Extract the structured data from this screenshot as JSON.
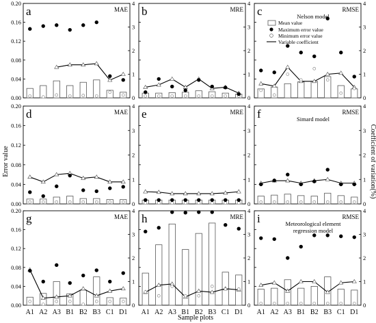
{
  "figure": {
    "y_axis_title": "Error value",
    "y2_axis_title": "Coefficient of variation(%)",
    "x_axis_title": "Sample plots",
    "legend": {
      "mean": "Mean value",
      "max": "Maximum error value",
      "min": "Minimum error value",
      "cv": "Variable coefficient"
    }
  },
  "chart_data": [
    {
      "id": "a",
      "type": "bar",
      "label": "a",
      "metric": "MAE",
      "model": "",
      "categories": [
        "A1",
        "A2",
        "A3",
        "B1",
        "B2",
        "B3",
        "C1",
        "D1"
      ],
      "ylim": [
        0,
        0.2
      ],
      "yticks": [
        "0.00",
        "0.04",
        "0.08",
        "0.12",
        "0.16",
        "0.20"
      ],
      "y2lim": [
        0,
        4
      ],
      "y2ticks": [
        "0",
        "1",
        "2",
        "3",
        "4"
      ],
      "mean": [
        0.02,
        0.026,
        0.036,
        0.026,
        0.033,
        0.038,
        0.016,
        0.012
      ],
      "max": [
        0.146,
        0.152,
        0.154,
        0.144,
        0.154,
        0.16,
        0.046,
        0.038
      ],
      "min": [
        0.004,
        0.002,
        0.006,
        0.004,
        0.005,
        0.004,
        0.012,
        0.006
      ],
      "cv": [
        null,
        null,
        1.3,
        1.4,
        1.4,
        1.45,
        0.75,
        1.0
      ]
    },
    {
      "id": "b",
      "type": "bar",
      "label": "b",
      "metric": "MRE",
      "model": "",
      "categories": [
        "A1",
        "A2",
        "A3",
        "B1",
        "B2",
        "B3",
        "C1",
        "D1"
      ],
      "ylim": [
        0,
        1.0
      ],
      "yticks": [
        "0.0",
        "0.2",
        "0.4",
        "0.6",
        "0.8",
        "1.0"
      ],
      "y2lim": [
        0,
        4
      ],
      "y2ticks": [
        "0",
        "1",
        "2",
        "3",
        "4"
      ],
      "mean": [
        0.05,
        0.05,
        0.055,
        0.06,
        0.075,
        0.065,
        0.05,
        0.04
      ],
      "max": [
        0.06,
        0.2,
        0.12,
        0.08,
        0.19,
        0.12,
        0.11,
        0.04
      ],
      "min": [
        0.02,
        0.02,
        0.02,
        0.02,
        0.02,
        0.02,
        0.02,
        0.02
      ],
      "cv": [
        0.45,
        0.55,
        0.8,
        0.45,
        0.8,
        0.4,
        0.45,
        0.2
      ]
    },
    {
      "id": "c",
      "type": "bar",
      "label": "c",
      "metric": "RMSE",
      "model": "Nelson model",
      "categories": [
        "A1",
        "A2",
        "A3",
        "B1",
        "B2",
        "B3",
        "C1",
        "D1"
      ],
      "ylim": [
        0,
        0.2
      ],
      "yticks": [
        "0.00",
        "0.04",
        "0.08",
        "0.12",
        "0.16",
        "0.20"
      ],
      "y2lim": [
        0,
        4
      ],
      "y2ticks": [
        "0",
        "1",
        "2",
        "3",
        "4"
      ],
      "mean": [
        0.019,
        0.023,
        0.03,
        0.034,
        0.035,
        0.045,
        0.026,
        0.019
      ],
      "max": [
        0.058,
        0.054,
        0.11,
        0.096,
        0.088,
        0.168,
        0.096,
        0.045
      ],
      "min": [
        0.016,
        0.006,
        0.05,
        0.038,
        0.062,
        0.038,
        0.01,
        0.02
      ],
      "cv": [
        0.6,
        0.5,
        1.3,
        0.7,
        0.7,
        1.0,
        1.05,
        0.45
      ]
    },
    {
      "id": "d",
      "type": "bar",
      "label": "d",
      "metric": "MAE",
      "model": "",
      "categories": [
        "A1",
        "A2",
        "A3",
        "B1",
        "B2",
        "B3",
        "C1",
        "D1"
      ],
      "ylim": [
        0,
        0.2
      ],
      "yticks": [
        "0.00",
        "0.04",
        "0.08",
        "0.12",
        "0.16",
        "0.20"
      ],
      "y2lim": [
        0,
        4
      ],
      "y2ticks": [
        "0",
        "1",
        "2",
        "3",
        "4"
      ],
      "mean": [
        0.01,
        0.01,
        0.014,
        0.016,
        0.011,
        0.011,
        0.009,
        0.009
      ],
      "max": [
        0.024,
        0.016,
        0.036,
        0.058,
        0.028,
        0.026,
        0.032,
        0.035
      ],
      "min": [
        0.004,
        0.004,
        0.004,
        0.004,
        0.004,
        0.004,
        0.004,
        0.004
      ],
      "cv": [
        1.1,
        0.9,
        1.2,
        1.25,
        1.05,
        1.1,
        0.9,
        0.9
      ]
    },
    {
      "id": "e",
      "type": "bar",
      "label": "e",
      "metric": "MRE",
      "model": "",
      "categories": [
        "A1",
        "A2",
        "A3",
        "B1",
        "B2",
        "B3",
        "C1",
        "D1"
      ],
      "ylim": [
        0,
        1.0
      ],
      "yticks": [
        "0.0",
        "0.2",
        "0.4",
        "0.6",
        "0.8",
        "1.0"
      ],
      "y2lim": [
        0,
        4
      ],
      "y2ticks": [
        "0",
        "1",
        "2",
        "3",
        "4"
      ],
      "mean": [
        0.04,
        0.04,
        0.04,
        0.04,
        0.04,
        0.04,
        0.04,
        0.04
      ],
      "max": [
        0.04,
        0.04,
        0.04,
        0.04,
        0.04,
        0.04,
        0.04,
        0.04
      ],
      "min": [
        0.01,
        0.01,
        0.01,
        0.01,
        0.01,
        0.01,
        0.01,
        0.01
      ],
      "cv": [
        0.5,
        0.48,
        0.42,
        0.42,
        0.42,
        0.42,
        0.45,
        0.5
      ]
    },
    {
      "id": "f",
      "type": "bar",
      "label": "f",
      "metric": "RMSE",
      "model": "Simard model",
      "categories": [
        "A1",
        "A2",
        "A3",
        "B1",
        "B2",
        "B3",
        "C1",
        "D1"
      ],
      "ylim": [
        0,
        0.2
      ],
      "yticks": [
        "0.00",
        "0.04",
        "0.08",
        "0.12",
        "0.16",
        "0.20"
      ],
      "y2lim": [
        0,
        4
      ],
      "y2ticks": [
        "0",
        "1",
        "2",
        "3",
        "4"
      ],
      "mean": [
        0.016,
        0.018,
        0.02,
        0.017,
        0.016,
        0.022,
        0.017,
        0.014
      ],
      "max": [
        0.04,
        0.048,
        0.06,
        0.04,
        0.046,
        0.07,
        0.04,
        0.04
      ],
      "min": [
        0.004,
        0.004,
        0.004,
        0.004,
        0.004,
        0.004,
        0.004,
        0.004
      ],
      "cv": [
        0.85,
        0.95,
        0.95,
        0.85,
        0.95,
        1.0,
        0.85,
        0.85
      ]
    },
    {
      "id": "g",
      "type": "bar",
      "label": "g",
      "metric": "MAE",
      "model": "",
      "categories": [
        "A1",
        "A2",
        "A3",
        "B1",
        "B2",
        "B3",
        "C1",
        "D1"
      ],
      "ylim": [
        0,
        0.2
      ],
      "yticks": [
        "0.00",
        "0.04",
        "0.08",
        "0.12",
        "0.16",
        "0.20"
      ],
      "y2lim": [
        0,
        4
      ],
      "y2ticks": [
        "0",
        "1",
        "2",
        "3",
        "4"
      ],
      "mean": [
        0.017,
        0.025,
        0.05,
        0.024,
        0.032,
        0.06,
        0.016,
        0.015
      ],
      "max": [
        0.073,
        0.05,
        0.085,
        0.047,
        0.063,
        0.074,
        0.05,
        0.068
      ],
      "min": [
        0.008,
        0.002,
        0.008,
        0.008,
        0.002,
        0.008,
        0.008,
        0.008
      ],
      "cv": [
        1.5,
        0.3,
        0.35,
        0.4,
        0.7,
        0.4,
        0.6,
        0.7
      ]
    },
    {
      "id": "h",
      "type": "bar",
      "label": "h",
      "metric": "MRE",
      "model": "",
      "categories": [
        "A1",
        "A2",
        "A3",
        "B1",
        "B2",
        "B3",
        "C1",
        "D1"
      ],
      "ylim": [
        0,
        1.0
      ],
      "yticks": [
        "0.0",
        "0.2",
        "0.4",
        "0.6",
        "0.8",
        "1.0"
      ],
      "y2lim": [
        0,
        4
      ],
      "y2ticks": [
        "0",
        "1",
        "2",
        "3",
        "4"
      ],
      "mean": [
        0.34,
        0.64,
        0.86,
        0.59,
        0.76,
        0.87,
        0.35,
        0.32
      ],
      "max": [
        0.78,
        0.82,
        1.0,
        0.98,
        0.99,
        0.99,
        0.85,
        0.81
      ],
      "min": [
        0.14,
        0.1,
        0.2,
        0.1,
        0.1,
        0.2,
        0.17,
        0.17
      ],
      "cv": [
        0.55,
        0.85,
        0.9,
        0.35,
        0.6,
        0.55,
        0.7,
        0.65
      ]
    },
    {
      "id": "i",
      "type": "bar",
      "label": "i",
      "metric": "RMSE",
      "model": "Meteorological element regression model",
      "categories": [
        "A1",
        "A2",
        "A3",
        "B1",
        "B2",
        "B3",
        "C1",
        "D1"
      ],
      "ylim": [
        0,
        1.0
      ],
      "yticks": [
        "0.0",
        "0.2",
        "0.4",
        "0.6",
        "0.8",
        "1.0"
      ],
      "y2lim": [
        0,
        4
      ],
      "y2ticks": [
        "0",
        "1",
        "2",
        "3",
        "4"
      ],
      "mean": [
        0.17,
        0.18,
        0.27,
        0.18,
        0.2,
        0.3,
        0.17,
        0.16
      ],
      "max": [
        0.71,
        0.7,
        0.5,
        0.62,
        0.74,
        0.74,
        0.73,
        0.72
      ],
      "min": [
        0.02,
        0.02,
        0.02,
        0.02,
        0.02,
        0.02,
        0.02,
        0.02
      ],
      "cv": [
        0.85,
        0.95,
        0.6,
        1.0,
        1.0,
        0.55,
        0.95,
        1.0
      ]
    }
  ]
}
